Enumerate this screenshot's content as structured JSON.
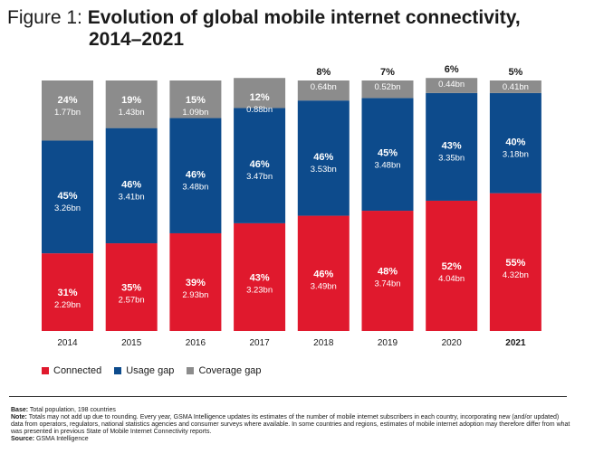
{
  "title": {
    "prefix": "Figure 1:",
    "main": "Evolution of global mobile internet connectivity,",
    "line2": "2014–2021"
  },
  "chart_data": {
    "type": "bar",
    "stacked": true,
    "percent_axis": true,
    "categories": [
      "2014",
      "2015",
      "2016",
      "2017",
      "2018",
      "2019",
      "2020",
      "2021"
    ],
    "highlight_category": "2021",
    "series": [
      {
        "name": "Connected",
        "color": "#e0192d",
        "values": [
          31,
          35,
          39,
          43,
          46,
          48,
          52,
          55
        ],
        "labels_pct": [
          "31%",
          "35%",
          "39%",
          "43%",
          "46%",
          "48%",
          "52%",
          "55%"
        ],
        "labels_abs": [
          "2.29bn",
          "2.57bn",
          "2.93bn",
          "3.23bn",
          "3.49bn",
          "3.74bn",
          "4.04bn",
          "4.32bn"
        ]
      },
      {
        "name": "Usage gap",
        "color": "#0d4b8c",
        "values": [
          45,
          46,
          46,
          46,
          46,
          45,
          43,
          40
        ],
        "labels_pct": [
          "45%",
          "46%",
          "46%",
          "46%",
          "46%",
          "45%",
          "43%",
          "40%"
        ],
        "labels_abs": [
          "3.26bn",
          "3.41bn",
          "3.48bn",
          "3.47bn",
          "3.53bn",
          "3.48bn",
          "3.35bn",
          "3.18bn"
        ]
      },
      {
        "name": "Coverage gap",
        "color": "#8c8c8c",
        "values": [
          24,
          19,
          15,
          12,
          8,
          7,
          6,
          5
        ],
        "labels_pct": [
          "24%",
          "19%",
          "15%",
          "12%",
          "8%",
          "7%",
          "6%",
          "5%"
        ],
        "labels_abs": [
          "1.77bn",
          "1.43bn",
          "1.09bn",
          "0.88bn",
          "0.64bn",
          "0.52bn",
          "0.44bn",
          "0.41bn"
        ]
      }
    ],
    "legend": [
      "Connected",
      "Usage gap",
      "Coverage gap"
    ],
    "legend_position": "bottom-left",
    "ylim": [
      0,
      100
    ]
  },
  "notes": {
    "base_label": "Base:",
    "base_text": "Total population, 198 countries",
    "note_label": "Note:",
    "note_text": "Totals may not add up due to rounding. Every year, GSMA Intelligence updates its estimates of the number of mobile internet subscribers in each country, incorporating new (and/or updated) data from operators, regulators, national statistics agencies and consumer surveys where available. In some countries and regions, estimates of mobile internet adoption may therefore differ from what was presented in previous State of Mobile Internet Connectivity reports.",
    "source_label": "Source:",
    "source_text": "GSMA Intelligence"
  }
}
